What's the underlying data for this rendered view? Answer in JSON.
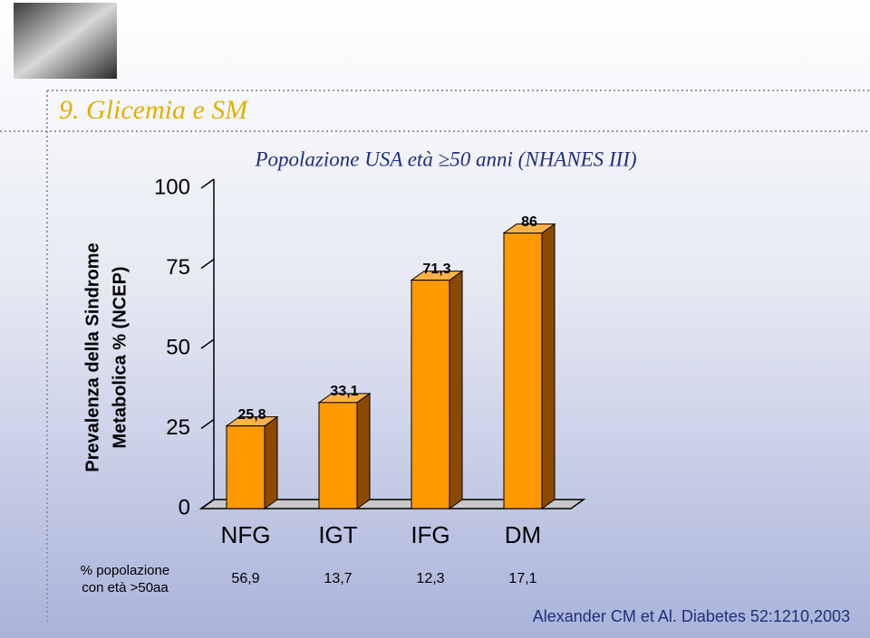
{
  "slide_title": "9. Glicemia e SM",
  "chart_data": {
    "type": "bar3d",
    "title": "Popolazione USA età ≥50 anni (NHANES III)",
    "y_label": [
      "Prevalenza della Sindrome",
      "Metabolica % (NCEP)"
    ],
    "categories": [
      "NFG",
      "IGT",
      "IFG",
      "DM"
    ],
    "values": [
      25.8,
      33.1,
      71.3,
      86
    ],
    "value_labels": [
      "25,8",
      "33,1",
      "71,3",
      "86"
    ],
    "color": "#ff9900",
    "ylim": [
      0,
      100
    ],
    "yticks": [
      0,
      25,
      50,
      75,
      100
    ]
  },
  "population": {
    "label": [
      "% popolazione",
      "con età >50aa"
    ],
    "values": [
      "56,9",
      "13,7",
      "12,3",
      "17,1"
    ]
  },
  "citation": "Alexander CM et Al. Diabetes 52:1210,2003"
}
